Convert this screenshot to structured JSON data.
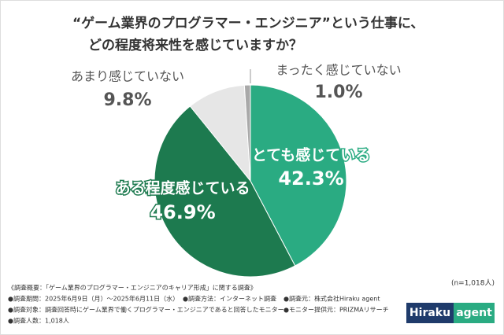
{
  "chart_data": {
    "type": "pie",
    "title": [
      "“ゲーム業界のプログラマー・エンジニア”という仕事に、",
      "どの程度将来性を感じていますか？"
    ],
    "categories": [
      "とても感じている",
      "ある程度感じている",
      "あまり感じていない",
      "まったく感じていない"
    ],
    "values": [
      42.3,
      46.9,
      9.8,
      1.0
    ],
    "value_labels": [
      "42.3%",
      "46.9%",
      "9.8%",
      "1.0%"
    ],
    "colors": [
      "#2aab82",
      "#1d7a4f",
      "#e6e6e6",
      "#a9a9a9"
    ],
    "sample_size": "(n=1,018人)"
  },
  "notes": [
    [
      "《調査概要：「ゲーム業界のプログラマー・エンジニアのキャリア形成」に関する調査》"
    ],
    [
      "●調査期間：2025年6月9日（月）～2025年6月11日（水）",
      "●調査方法：インターネット調査",
      "●調査元：株式会社Hiraku agent"
    ],
    [
      "●調査対象：調査回答時にゲーム業界で働くプログラマー・エンジニアであると回答したモニター",
      "●モニター提供元：PRIZMAリサーチ"
    ],
    [
      "●調査人数：1,018人"
    ]
  ],
  "logo": [
    "Hiraku",
    "agent"
  ]
}
